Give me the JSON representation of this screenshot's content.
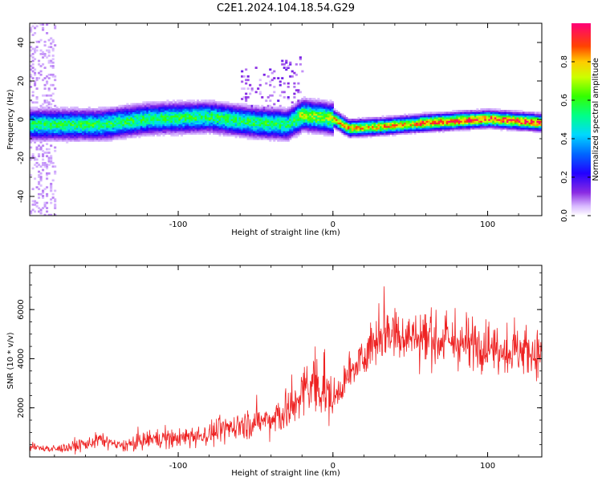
{
  "figure": {
    "title": "C2E1.2024.104.18.54.G29"
  },
  "colorbar": {
    "label": "Normalized spectral amplitude",
    "ticks": [
      "0.0",
      "0.2",
      "0.4",
      "0.6",
      "0.8"
    ]
  },
  "colors": {
    "snr_line": "#ee2222",
    "axis": "#000000",
    "background": "#ffffff"
  },
  "chart_data": [
    {
      "type": "heatmap",
      "title": "",
      "xlabel": "Height of straight line (km)",
      "ylabel": "Frequency (Hz)",
      "xlim": [
        -196,
        135
      ],
      "ylim": [
        -50,
        50
      ],
      "xticks": [
        -100,
        0,
        100
      ],
      "yticks": [
        -40,
        -20,
        0,
        20,
        40
      ],
      "colorbar_range": [
        0.0,
        1.0
      ],
      "grid": false,
      "ridge_frequency_profile": [
        {
          "x": -196,
          "freq": -3
        },
        {
          "x": -150,
          "freq": -3
        },
        {
          "x": -120,
          "freq": 0
        },
        {
          "x": -80,
          "freq": 1
        },
        {
          "x": -50,
          "freq": -2
        },
        {
          "x": -30,
          "freq": -3
        },
        {
          "x": -20,
          "freq": 2
        },
        {
          "x": 0,
          "freq": 0
        },
        {
          "x": 10,
          "freq": -5
        },
        {
          "x": 30,
          "freq": -4
        },
        {
          "x": 60,
          "freq": -2
        },
        {
          "x": 100,
          "freq": 0
        },
        {
          "x": 135,
          "freq": -2
        }
      ]
    },
    {
      "type": "line",
      "title": "",
      "xlabel": "Height of straight line (km)",
      "ylabel": "SNR (10 * v/v)",
      "xlim": [
        -196,
        135
      ],
      "ylim": [
        0,
        7800
      ],
      "xticks": [
        -100,
        0,
        100
      ],
      "yticks": [
        2000,
        4000,
        6000
      ],
      "grid": false,
      "series": [
        {
          "x": [
            -196,
            -180,
            -160,
            -150,
            -140,
            -130,
            -120,
            -100,
            -80,
            -60,
            -40,
            -25,
            -20,
            -10,
            0,
            10,
            20,
            30,
            40,
            50,
            60,
            80,
            100,
            120,
            135
          ],
          "values": [
            400,
            300,
            500,
            700,
            450,
            500,
            700,
            750,
            900,
            1300,
            1500,
            2000,
            2600,
            3000,
            2300,
            3200,
            4100,
            5000,
            5100,
            4900,
            4800,
            4600,
            4500,
            4300,
            4200
          ]
        }
      ]
    }
  ]
}
